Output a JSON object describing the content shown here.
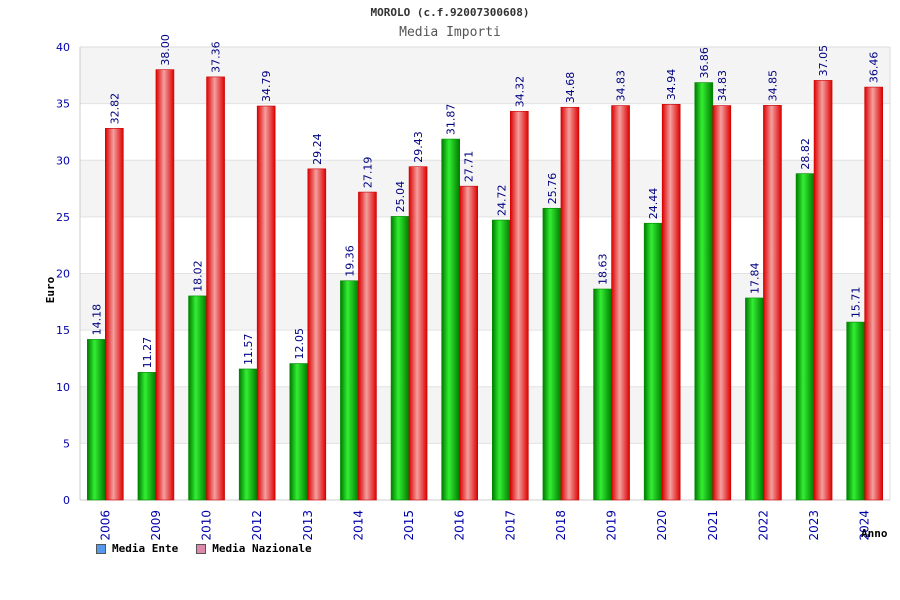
{
  "chart_data": {
    "type": "bar",
    "title": "MOROLO (c.f.92007300608)",
    "subtitle": "Media Importi",
    "xlabel": "Anno",
    "ylabel": "Euro",
    "ylim": [
      0,
      40
    ],
    "yticks": [
      0,
      5,
      10,
      15,
      20,
      25,
      30,
      35,
      40
    ],
    "grid": true,
    "legend_position": "bottom-left",
    "categories": [
      "2006",
      "2009",
      "2010",
      "2012",
      "2013",
      "2014",
      "2015",
      "2016",
      "2017",
      "2018",
      "2019",
      "2020",
      "2021",
      "2022",
      "2023",
      "2024"
    ],
    "series": [
      {
        "name": "Media Ente",
        "color": "#00aa00",
        "legend_color": "#5599ee",
        "values": [
          14.18,
          11.27,
          18.02,
          11.57,
          12.05,
          19.36,
          25.04,
          31.87,
          24.72,
          25.76,
          18.63,
          24.44,
          36.86,
          17.84,
          28.82,
          15.71
        ],
        "labels": [
          "14.18",
          "11.27",
          "18.02",
          "11.57",
          "12.05",
          "19.36",
          "25.04",
          "31.87",
          "24.72",
          "25.76",
          "18.63",
          "24.44",
          "36.86",
          "17.84",
          "28.82",
          "15.71"
        ]
      },
      {
        "name": "Media Nazionale",
        "color": "#ee1111",
        "legend_color": "#dd88aa",
        "values": [
          32.82,
          38.0,
          37.36,
          34.79,
          29.24,
          27.19,
          29.43,
          27.71,
          34.32,
          34.68,
          34.83,
          34.94,
          34.83,
          34.85,
          37.05,
          36.46
        ],
        "labels": [
          "32.82",
          "38.00",
          "37.36",
          "34.79",
          "29.24",
          "27.19",
          "29.43",
          "27.71",
          "34.32",
          "34.68",
          "34.83",
          "34.94",
          "34.83",
          "34.85",
          "37.05",
          "36.46"
        ]
      }
    ]
  }
}
